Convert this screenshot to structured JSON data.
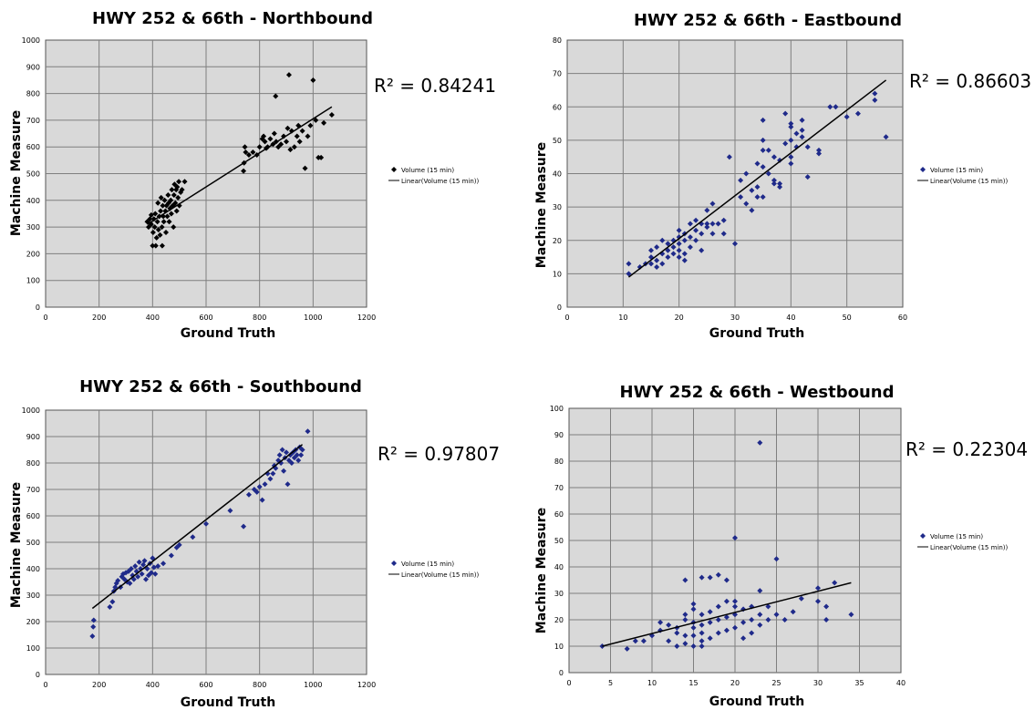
{
  "chart_data": [
    {
      "type": "scatter",
      "title": "HWY 252 & 66th - Northbound",
      "xlabel": "Ground Truth",
      "ylabel": "Machine Measure",
      "xlim": [
        0,
        1200
      ],
      "ylim": [
        0,
        1000
      ],
      "xticks": [
        "0",
        "200",
        "400",
        "600",
        "800",
        "1000",
        "1200"
      ],
      "yticks": [
        "0",
        "100",
        "200",
        "300",
        "400",
        "500",
        "600",
        "700",
        "800",
        "900",
        "1000"
      ],
      "grid": true,
      "r2_text": "R² = 0.84241",
      "legend": {
        "placement": "right",
        "entries": [
          "Volume (15 min)",
          "Linear(Volume (15 min))"
        ]
      },
      "marker_color": "#000000",
      "trendline": {
        "x": [
          380,
          1070
        ],
        "y": [
          310,
          750
        ]
      },
      "points": [
        [
          380,
          320
        ],
        [
          385,
          300
        ],
        [
          390,
          330
        ],
        [
          395,
          310
        ],
        [
          395,
          345
        ],
        [
          400,
          230
        ],
        [
          402,
          280
        ],
        [
          405,
          330
        ],
        [
          408,
          300
        ],
        [
          410,
          350
        ],
        [
          412,
          230
        ],
        [
          415,
          260
        ],
        [
          418,
          320
        ],
        [
          420,
          390
        ],
        [
          422,
          290
        ],
        [
          425,
          340
        ],
        [
          428,
          270
        ],
        [
          430,
          360
        ],
        [
          432,
          410
        ],
        [
          435,
          300
        ],
        [
          436,
          230
        ],
        [
          438,
          380
        ],
        [
          440,
          340
        ],
        [
          442,
          320
        ],
        [
          445,
          400
        ],
        [
          448,
          360
        ],
        [
          450,
          280
        ],
        [
          452,
          380
        ],
        [
          455,
          340
        ],
        [
          458,
          420
        ],
        [
          460,
          390
        ],
        [
          462,
          320
        ],
        [
          465,
          370
        ],
        [
          468,
          400
        ],
        [
          470,
          350
        ],
        [
          472,
          440
        ],
        [
          475,
          380
        ],
        [
          478,
          300
        ],
        [
          480,
          420
        ],
        [
          482,
          460
        ],
        [
          485,
          390
        ],
        [
          488,
          440
        ],
        [
          490,
          360
        ],
        [
          492,
          450
        ],
        [
          495,
          410
        ],
        [
          498,
          470
        ],
        [
          500,
          380
        ],
        [
          505,
          430
        ],
        [
          510,
          440
        ],
        [
          520,
          470
        ],
        [
          740,
          510
        ],
        [
          742,
          540
        ],
        [
          745,
          600
        ],
        [
          748,
          580
        ],
        [
          760,
          570
        ],
        [
          775,
          580
        ],
        [
          790,
          570
        ],
        [
          800,
          600
        ],
        [
          810,
          630
        ],
        [
          815,
          640
        ],
        [
          820,
          620
        ],
        [
          825,
          595
        ],
        [
          830,
          600
        ],
        [
          840,
          630
        ],
        [
          850,
          610
        ],
        [
          855,
          650
        ],
        [
          860,
          790
        ],
        [
          862,
          620
        ],
        [
          870,
          600
        ],
        [
          880,
          610
        ],
        [
          890,
          640
        ],
        [
          900,
          620
        ],
        [
          905,
          670
        ],
        [
          910,
          870
        ],
        [
          915,
          590
        ],
        [
          920,
          660
        ],
        [
          930,
          600
        ],
        [
          940,
          640
        ],
        [
          945,
          680
        ],
        [
          950,
          620
        ],
        [
          960,
          660
        ],
        [
          970,
          520
        ],
        [
          980,
          640
        ],
        [
          990,
          680
        ],
        [
          1000,
          850
        ],
        [
          1010,
          700
        ],
        [
          1020,
          560
        ],
        [
          1030,
          560
        ],
        [
          1040,
          690
        ],
        [
          1070,
          720
        ]
      ]
    },
    {
      "type": "scatter",
      "title": "HWY 252 & 66th - Eastbound",
      "xlabel": "Ground Truth",
      "ylabel": "Machine Measure",
      "xlim": [
        0,
        60
      ],
      "ylim": [
        0,
        80
      ],
      "xticks": [
        "0",
        "10",
        "20",
        "30",
        "40",
        "50",
        "60"
      ],
      "yticks": [
        "0",
        "10",
        "20",
        "30",
        "40",
        "50",
        "60",
        "70",
        "80"
      ],
      "grid": true,
      "r2_text": "R² = 0.86603",
      "legend": {
        "placement": "right",
        "entries": [
          "Volume (15 min)",
          "Linear(Volume (15 min))"
        ]
      },
      "marker_color": "#1f2a8a",
      "trendline": {
        "x": [
          11,
          57
        ],
        "y": [
          9,
          68
        ]
      },
      "points": [
        [
          11,
          13
        ],
        [
          11,
          10
        ],
        [
          13,
          12
        ],
        [
          14,
          13
        ],
        [
          15,
          17
        ],
        [
          15,
          13
        ],
        [
          15,
          15
        ],
        [
          16,
          18
        ],
        [
          16,
          14
        ],
        [
          16,
          12
        ],
        [
          17,
          16
        ],
        [
          17,
          20
        ],
        [
          17,
          13
        ],
        [
          18,
          15
        ],
        [
          18,
          19
        ],
        [
          18,
          17
        ],
        [
          19,
          20
        ],
        [
          19,
          16
        ],
        [
          19,
          18
        ],
        [
          20,
          15
        ],
        [
          20,
          17
        ],
        [
          20,
          19
        ],
        [
          20,
          21
        ],
        [
          20,
          23
        ],
        [
          21,
          16
        ],
        [
          21,
          20
        ],
        [
          21,
          22
        ],
        [
          21,
          14
        ],
        [
          22,
          18
        ],
        [
          22,
          21
        ],
        [
          22,
          25
        ],
        [
          23,
          20
        ],
        [
          23,
          23
        ],
        [
          23,
          26
        ],
        [
          24,
          22
        ],
        [
          24,
          25
        ],
        [
          24,
          17
        ],
        [
          25,
          25
        ],
        [
          25,
          24
        ],
        [
          25,
          29
        ],
        [
          26,
          25
        ],
        [
          26,
          31
        ],
        [
          26,
          22
        ],
        [
          27,
          25
        ],
        [
          28,
          22
        ],
        [
          28,
          26
        ],
        [
          29,
          45
        ],
        [
          30,
          19
        ],
        [
          31,
          38
        ],
        [
          31,
          33
        ],
        [
          32,
          31
        ],
        [
          32,
          40
        ],
        [
          33,
          29
        ],
        [
          33,
          35
        ],
        [
          34,
          33
        ],
        [
          34,
          36
        ],
        [
          34,
          43
        ],
        [
          35,
          50
        ],
        [
          35,
          56
        ],
        [
          35,
          33
        ],
        [
          35,
          47
        ],
        [
          35,
          42
        ],
        [
          36,
          47
        ],
        [
          36,
          40
        ],
        [
          37,
          45
        ],
        [
          37,
          38
        ],
        [
          37,
          37
        ],
        [
          38,
          44
        ],
        [
          38,
          37
        ],
        [
          38,
          36
        ],
        [
          39,
          49
        ],
        [
          39,
          58
        ],
        [
          40,
          43
        ],
        [
          40,
          45
        ],
        [
          40,
          50
        ],
        [
          40,
          55
        ],
        [
          40,
          54
        ],
        [
          41,
          52
        ],
        [
          41,
          48
        ],
        [
          42,
          51
        ],
        [
          42,
          56
        ],
        [
          42,
          53
        ],
        [
          43,
          39
        ],
        [
          43,
          48
        ],
        [
          45,
          47
        ],
        [
          45,
          46
        ],
        [
          47,
          60
        ],
        [
          48,
          60
        ],
        [
          50,
          57
        ],
        [
          52,
          58
        ],
        [
          55,
          64
        ],
        [
          55,
          62
        ],
        [
          57,
          51
        ]
      ]
    },
    {
      "type": "scatter",
      "title": "HWY 252 & 66th - Southbound",
      "xlabel": "Ground Truth",
      "ylabel": "Machine Measure",
      "xlim": [
        0,
        1200
      ],
      "ylim": [
        0,
        1000
      ],
      "xticks": [
        "0",
        "200",
        "400",
        "600",
        "800",
        "1000",
        "1200"
      ],
      "yticks": [
        "0",
        "100",
        "200",
        "300",
        "400",
        "500",
        "600",
        "700",
        "800",
        "900",
        "1000"
      ],
      "grid": true,
      "r2_text": "R² = 0.97807",
      "legend": {
        "placement": "right",
        "entries": [
          "Volume (15 min)",
          "Linear(Volume (15 min))"
        ]
      },
      "marker_color": "#1f2a8a",
      "trendline": {
        "x": [
          175,
          960
        ],
        "y": [
          250,
          870
        ]
      },
      "points": [
        [
          175,
          145
        ],
        [
          178,
          180
        ],
        [
          180,
          205
        ],
        [
          240,
          255
        ],
        [
          250,
          275
        ],
        [
          255,
          315
        ],
        [
          260,
          330
        ],
        [
          265,
          345
        ],
        [
          270,
          355
        ],
        [
          280,
          330
        ],
        [
          285,
          370
        ],
        [
          290,
          380
        ],
        [
          295,
          360
        ],
        [
          300,
          385
        ],
        [
          305,
          350
        ],
        [
          310,
          390
        ],
        [
          315,
          345
        ],
        [
          320,
          400
        ],
        [
          325,
          375
        ],
        [
          330,
          360
        ],
        [
          335,
          410
        ],
        [
          340,
          390
        ],
        [
          345,
          370
        ],
        [
          350,
          425
        ],
        [
          355,
          400
        ],
        [
          360,
          380
        ],
        [
          365,
          415
        ],
        [
          370,
          430
        ],
        [
          375,
          360
        ],
        [
          380,
          400
        ],
        [
          385,
          375
        ],
        [
          390,
          420
        ],
        [
          395,
          385
        ],
        [
          400,
          440
        ],
        [
          405,
          405
        ],
        [
          410,
          380
        ],
        [
          420,
          410
        ],
        [
          440,
          420
        ],
        [
          470,
          450
        ],
        [
          490,
          480
        ],
        [
          500,
          490
        ],
        [
          550,
          520
        ],
        [
          600,
          570
        ],
        [
          690,
          620
        ],
        [
          740,
          560
        ],
        [
          760,
          680
        ],
        [
          780,
          700
        ],
        [
          790,
          690
        ],
        [
          800,
          710
        ],
        [
          810,
          660
        ],
        [
          820,
          720
        ],
        [
          830,
          760
        ],
        [
          840,
          740
        ],
        [
          850,
          760
        ],
        [
          855,
          790
        ],
        [
          860,
          780
        ],
        [
          870,
          810
        ],
        [
          875,
          830
        ],
        [
          880,
          800
        ],
        [
          885,
          850
        ],
        [
          890,
          770
        ],
        [
          895,
          820
        ],
        [
          900,
          840
        ],
        [
          905,
          720
        ],
        [
          910,
          810
        ],
        [
          915,
          830
        ],
        [
          920,
          800
        ],
        [
          925,
          840
        ],
        [
          930,
          820
        ],
        [
          935,
          850
        ],
        [
          940,
          830
        ],
        [
          945,
          810
        ],
        [
          950,
          860
        ],
        [
          955,
          830
        ],
        [
          960,
          850
        ],
        [
          980,
          920
        ]
      ]
    },
    {
      "type": "scatter",
      "title": "HWY 252 & 66th - Westbound",
      "xlabel": "Ground Truth",
      "ylabel": "Machine Measure",
      "xlim": [
        0,
        40
      ],
      "ylim": [
        0,
        100
      ],
      "xticks": [
        "0",
        "5",
        "10",
        "15",
        "20",
        "25",
        "30",
        "35",
        "40"
      ],
      "yticks": [
        "0",
        "10",
        "20",
        "30",
        "40",
        "50",
        "60",
        "70",
        "80",
        "90",
        "100"
      ],
      "grid": true,
      "r2_text": "R² = 0.22304",
      "legend": {
        "placement": "right",
        "entries": [
          "Volume (15 min)",
          "Linear(Volume (15 min))"
        ]
      },
      "marker_color": "#1f2a8a",
      "trendline": {
        "x": [
          4,
          34
        ],
        "y": [
          10,
          34
        ]
      },
      "points": [
        [
          4,
          10
        ],
        [
          7,
          9
        ],
        [
          8,
          12
        ],
        [
          9,
          12
        ],
        [
          10,
          14
        ],
        [
          11,
          16
        ],
        [
          11,
          19
        ],
        [
          12,
          12
        ],
        [
          12,
          18
        ],
        [
          13,
          10
        ],
        [
          13,
          15
        ],
        [
          13,
          17
        ],
        [
          14,
          35
        ],
        [
          14,
          11
        ],
        [
          14,
          14
        ],
        [
          14,
          20
        ],
        [
          14,
          22
        ],
        [
          15,
          10
        ],
        [
          15,
          14
        ],
        [
          15,
          17
        ],
        [
          15,
          19
        ],
        [
          15,
          24
        ],
        [
          15,
          26
        ],
        [
          16,
          10
        ],
        [
          16,
          12
        ],
        [
          16,
          15
        ],
        [
          16,
          18
        ],
        [
          16,
          22
        ],
        [
          16,
          36
        ],
        [
          17,
          13
        ],
        [
          17,
          19
        ],
        [
          17,
          23
        ],
        [
          17,
          36
        ],
        [
          18,
          15
        ],
        [
          18,
          20
        ],
        [
          18,
          25
        ],
        [
          18,
          37
        ],
        [
          19,
          16
        ],
        [
          19,
          21
        ],
        [
          19,
          27
        ],
        [
          19,
          35
        ],
        [
          20,
          17
        ],
        [
          20,
          22
        ],
        [
          20,
          25
        ],
        [
          20,
          27
        ],
        [
          20,
          51
        ],
        [
          21,
          13
        ],
        [
          21,
          19
        ],
        [
          21,
          24
        ],
        [
          22,
          15
        ],
        [
          22,
          20
        ],
        [
          22,
          25
        ],
        [
          23,
          87
        ],
        [
          23,
          18
        ],
        [
          23,
          22
        ],
        [
          23,
          31
        ],
        [
          24,
          20
        ],
        [
          24,
          25
        ],
        [
          25,
          43
        ],
        [
          25,
          22
        ],
        [
          26,
          20
        ],
        [
          27,
          23
        ],
        [
          28,
          28
        ],
        [
          30,
          32
        ],
        [
          30,
          27
        ],
        [
          31,
          25
        ],
        [
          31,
          20
        ],
        [
          32,
          34
        ],
        [
          34,
          22
        ]
      ]
    }
  ]
}
